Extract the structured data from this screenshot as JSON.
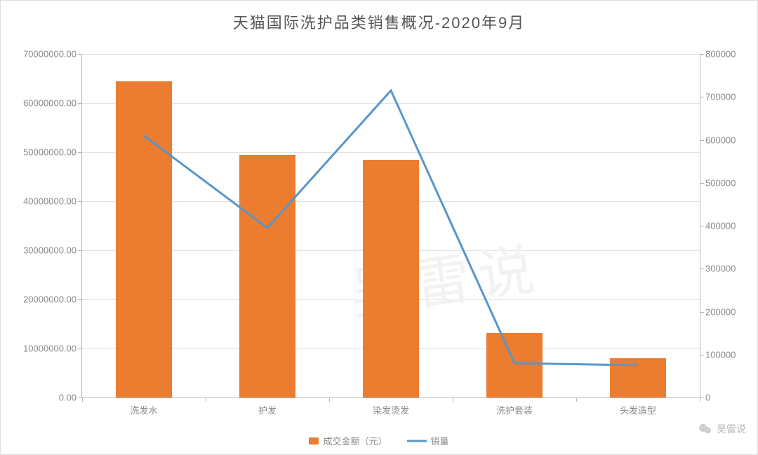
{
  "chart": {
    "type": "bar-line-combo",
    "title": "天猫国际洗护品类销售概况-2020年9月",
    "title_fontsize": 22,
    "title_color": "#555555",
    "background_color": "#ffffff",
    "plot_border_color": "#b7b7b7",
    "grid_color": "#e3e3e3",
    "axis_label_color": "#8a8a8a",
    "axis_label_fontsize": 13,
    "categories": [
      "洗发水",
      "护发",
      "染发烫发",
      "洗护套装",
      "头发造型"
    ],
    "bars": {
      "series_name": "成交金额（元）",
      "color": "#ec7c30",
      "width_fraction": 0.45,
      "values": [
        64500000,
        49500000,
        48500000,
        13200000,
        8000000
      ]
    },
    "line": {
      "series_name": "销量",
      "color": "#5996c8",
      "line_width": 3,
      "values": [
        610000,
        395000,
        715000,
        80000,
        75000
      ]
    },
    "y_left": {
      "min": 0,
      "max": 70000000,
      "step": 10000000,
      "tick_labels": [
        "0.00",
        "10000000.00",
        "20000000.00",
        "30000000.00",
        "40000000.00",
        "50000000.00",
        "60000000.00",
        "70000000.00"
      ]
    },
    "y_right": {
      "min": 0,
      "max": 800000,
      "step": 100000,
      "tick_labels": [
        "0",
        "100000",
        "200000",
        "300000",
        "400000",
        "500000",
        "600000",
        "700000",
        "800000"
      ]
    },
    "legend": {
      "items": [
        {
          "label": "成交金额（元）",
          "type": "bar",
          "color": "#ec7c30"
        },
        {
          "label": "销量",
          "type": "line",
          "color": "#5996c8"
        }
      ]
    },
    "watermark_text": "吴雷说",
    "watermark_color": "#f3f2f1"
  },
  "attribution": {
    "source_label": "吴雷说",
    "icon_color": "#b8b8b8"
  }
}
